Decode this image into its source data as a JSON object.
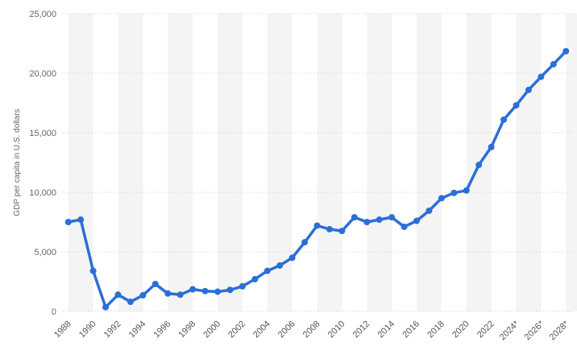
{
  "chart_data": {
    "type": "line",
    "title": "",
    "xlabel": "",
    "ylabel": "GDP per capita in U.S. dollars",
    "ylim": [
      0,
      25000
    ],
    "yticks": [
      "0",
      "5,000",
      "10,000",
      "15,000",
      "20,000",
      "25,000"
    ],
    "x": [
      "1988",
      "1989",
      "1990",
      "1991",
      "1992",
      "1993",
      "1994",
      "1995",
      "1996",
      "1997",
      "1998",
      "1999",
      "2000",
      "2001",
      "2002",
      "2003",
      "2004",
      "2005",
      "2006",
      "2007",
      "2008",
      "2009",
      "2010",
      "2011",
      "2012",
      "2013",
      "2014",
      "2015",
      "2016",
      "2017",
      "2018",
      "2019",
      "2020",
      "2021",
      "2022",
      "2023",
      "2024*",
      "2025*",
      "2026*",
      "2027*",
      "2028*"
    ],
    "xtick_labels": [
      "1988",
      "1990",
      "1992",
      "1994",
      "1996",
      "1998",
      "2000",
      "2002",
      "2004",
      "2006",
      "2008",
      "2010",
      "2012",
      "2014",
      "2016",
      "2018",
      "2020",
      "2022",
      "2024*",
      "2026*",
      "2028*"
    ],
    "series": [
      {
        "values": [
          7500,
          7700,
          3400,
          350,
          1400,
          800,
          1350,
          2300,
          1500,
          1400,
          1850,
          1700,
          1650,
          1800,
          2100,
          2700,
          3400,
          3850,
          4500,
          5800,
          7200,
          6900,
          6750,
          7900,
          7500,
          7700,
          7900,
          7100,
          7600,
          8450,
          9500,
          9950,
          10150,
          12300,
          13800,
          16100,
          17300,
          18600,
          19700,
          20750,
          21850
        ]
      }
    ],
    "grid": true,
    "line_color": "#2b6fd6",
    "band_color": "#f4f4f4",
    "gridline_color": "#e0e0e0"
  }
}
